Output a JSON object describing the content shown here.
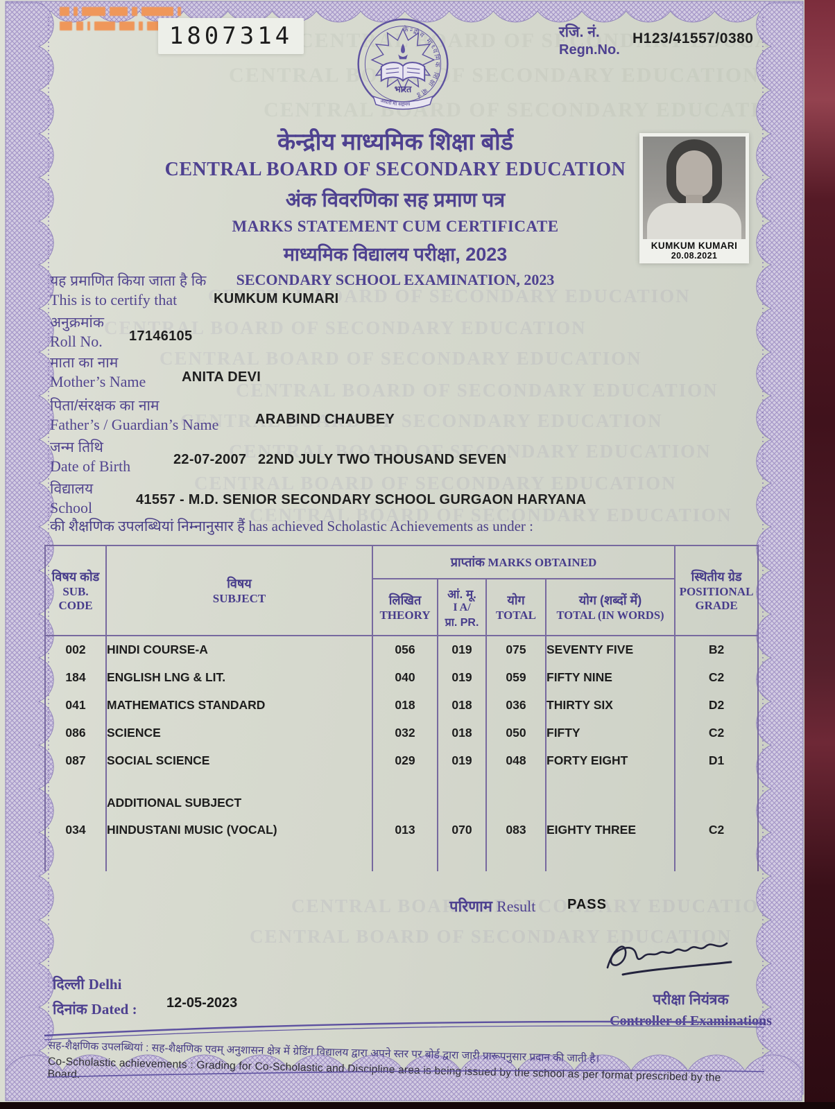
{
  "certificate": {
    "serial_number": "1807314"
  },
  "regn": {
    "label_hi": "रजि. नं.",
    "label_en": "Regn.No.",
    "value": "H123/41557/0380"
  },
  "header": {
    "board_hi": "केन्द्रीय माध्यमिक शिक्षा बोर्ड",
    "board_en": "CENTRAL BOARD OF SECONDARY EDUCATION",
    "title_hi": "अंक विवरणिका सह प्रमाण पत्र",
    "title_en": "MARKS STATEMENT CUM CERTIFICATE",
    "exam_hi": "माध्यमिक विद्यालय परीक्षा, 2023",
    "exam_en": "SECONDARY SCHOOL EXAMINATION, 2023"
  },
  "logo": {
    "country": "भारत",
    "motto": "असतो मा सद्गमय",
    "ring_text": "केन्द्रीय माध्यमिक शिक्षा बोर्ड"
  },
  "photo": {
    "name": "KUMKUM KUMARI",
    "date": "20.08.2021"
  },
  "student": {
    "certify_hi": "यह प्रमाणित किया जाता है कि",
    "certify_en": "This is to certify that",
    "name": "KUMKUM KUMARI",
    "roll_hi": "अनुक्रमांक",
    "roll_en": "Roll No.",
    "roll": "17146105",
    "mother_hi": "माता का नाम",
    "mother_en": "Mother’s Name",
    "mother": "ANITA DEVI",
    "father_hi": "पिता/संरक्षक का नाम",
    "father_en": "Father’s / Guardian’s Name",
    "father": "ARABIND CHAUBEY",
    "dob_hi": "जन्म तिथि",
    "dob_en": "Date of Birth",
    "dob": "22-07-2007",
    "dob_words": "22ND JULY TWO THOUSAND  SEVEN",
    "school_hi": "विद्यालय",
    "school_en": "School",
    "school": "41557 - M.D. SENIOR SECONDARY SCHOOL GURGAON HARYANA",
    "achievement_line": "की शैक्षणिक उपलब्धियां निम्नानुसार हैं has achieved Scholastic Achievements as under :"
  },
  "table": {
    "sub_code_hi": "विषय कोड",
    "sub_code_en1": "SUB.",
    "sub_code_en2": "CODE",
    "subject_hi": "विषय",
    "subject_en": "SUBJECT",
    "marks_hi": "प्राप्तांक",
    "marks_en": "MARKS OBTAINED",
    "theory_hi": "लिखित",
    "theory_en": "THEORY",
    "ia_1": "आं. मू.",
    "ia_2": "I A/",
    "ia_3": "प्रा. PR.",
    "total_hi": "योग",
    "total_en": "TOTAL",
    "words_hi": "योग (शब्दों में)",
    "words_en": "TOTAL (IN WORDS)",
    "grade_hi": "स्थितीय ग्रेड",
    "grade_en1": "POSITIONAL",
    "grade_en2": "GRADE",
    "additional_label": "ADDITIONAL SUBJECT",
    "rows": [
      {
        "code": "002",
        "subject": "HINDI COURSE-A",
        "theory": "056",
        "ia": "019",
        "total": "075",
        "words": "SEVENTY FIVE",
        "grade": "B2"
      },
      {
        "code": "184",
        "subject": "ENGLISH LNG & LIT.",
        "theory": "040",
        "ia": "019",
        "total": "059",
        "words": "FIFTY NINE",
        "grade": "C2"
      },
      {
        "code": "041",
        "subject": "MATHEMATICS STANDARD",
        "theory": "018",
        "ia": "018",
        "total": "036",
        "words": "THIRTY SIX",
        "grade": "D2"
      },
      {
        "code": "086",
        "subject": "SCIENCE",
        "theory": "032",
        "ia": "018",
        "total": "050",
        "words": "FIFTY",
        "grade": "C2"
      },
      {
        "code": "087",
        "subject": "SOCIAL SCIENCE",
        "theory": "029",
        "ia": "019",
        "total": "048",
        "words": "FORTY EIGHT",
        "grade": "D1"
      },
      {
        "code": "034",
        "subject": "HINDUSTANI MUSIC (VOCAL)",
        "theory": "013",
        "ia": "070",
        "total": "083",
        "words": "EIGHTY THREE",
        "grade": "C2"
      }
    ]
  },
  "result": {
    "label_hi": "परिणाम",
    "label_en": "Result",
    "value": "PASS"
  },
  "footer": {
    "place_hi": "दिल्ली",
    "place_en": "Delhi",
    "dated_hi": "दिनांक",
    "dated_en": "Dated :",
    "date": "12-05-2023",
    "signatory_hi": "परीक्षा नियंत्रक",
    "signatory_en": "Controller of Examinations",
    "note_hi": "सह-शैक्षणिक उपलब्धियां : सह-शैक्षणिक एवम् अनुशासन क्षेत्र में ग्रेडिंग विद्यालय द्वारा अपने स्तर पर बोर्ड द्वारा जारी प्रारूपनुसार प्रदान की जाती है।",
    "note_en": "Co-Scholastic achievements : Grading for Co-Scholastic and Discipline area is being issued by the school as per format prescribed by the Board."
  },
  "colors": {
    "ink_purple": "#4e4190",
    "typed_black": "#1d1d1d",
    "paper": "#d6d9ce",
    "stamp_orange": "#ef975a",
    "lace": "#b3a5cf",
    "fabric_maroon": "#55202c"
  }
}
